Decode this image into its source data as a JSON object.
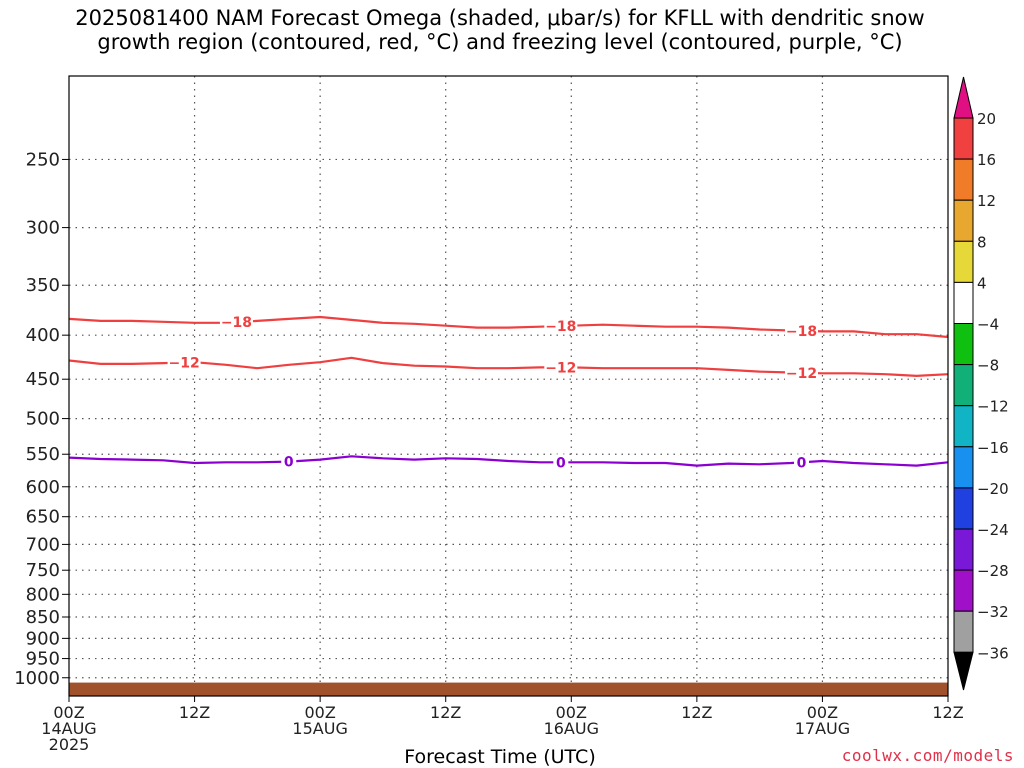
{
  "title": {
    "line1": "2025081400 NAM Forecast Omega (shaded, μbar/s) for KFLL with dendritic snow",
    "line2": "growth region (contoured, red, °C) and freezing level (contoured, purple, °C)"
  },
  "credit": "coolwx.com/models",
  "chart_data": {
    "type": "line",
    "title": "2025081400 NAM Forecast Omega (shaded, μbar/s) for KFLL with dendritic snow growth region (contoured, red, °C) and freezing level (contoured, purple, °C)",
    "xlabel": "Forecast Time (UTC)",
    "ylabel": "",
    "y_scale": "log",
    "y_inverted": true,
    "ylim": [
      1050,
      200
    ],
    "xlim": [
      0,
      84
    ],
    "grid": true,
    "x_ticks": [
      {
        "hour": 0,
        "lines": [
          "00Z",
          "14AUG",
          "2025"
        ]
      },
      {
        "hour": 12,
        "lines": [
          "12Z"
        ]
      },
      {
        "hour": 24,
        "lines": [
          "00Z",
          "15AUG"
        ]
      },
      {
        "hour": 36,
        "lines": [
          "12Z"
        ]
      },
      {
        "hour": 48,
        "lines": [
          "00Z",
          "16AUG"
        ]
      },
      {
        "hour": 60,
        "lines": [
          "12Z"
        ]
      },
      {
        "hour": 72,
        "lines": [
          "00Z",
          "17AUG"
        ]
      },
      {
        "hour": 84,
        "lines": [
          "12Z"
        ]
      }
    ],
    "y_ticks": [
      250,
      300,
      350,
      400,
      450,
      500,
      550,
      600,
      650,
      700,
      750,
      800,
      850,
      900,
      950,
      1000
    ],
    "x": [
      0,
      3,
      6,
      9,
      12,
      15,
      18,
      21,
      24,
      27,
      30,
      33,
      36,
      39,
      42,
      45,
      48,
      51,
      54,
      57,
      60,
      63,
      66,
      69,
      72,
      75,
      78,
      81,
      84
    ],
    "series": [
      {
        "name": "-18",
        "color": "#ee4040",
        "label_at_hours": [
          16,
          47,
          70
        ],
        "values": [
          383,
          385,
          385,
          386,
          387,
          387,
          385,
          383,
          381,
          384,
          387,
          388,
          390,
          392,
          392,
          391,
          390,
          389,
          390,
          391,
          391,
          392,
          394,
          395,
          396,
          396,
          399,
          399,
          402
        ]
      },
      {
        "name": "-12",
        "color": "#ee4040",
        "label_at_hours": [
          11,
          47,
          70
        ],
        "values": [
          428,
          432,
          432,
          431,
          430,
          433,
          437,
          433,
          430,
          425,
          431,
          434,
          435,
          437,
          437,
          436,
          436,
          437,
          437,
          437,
          437,
          439,
          441,
          442,
          443,
          443,
          444,
          446,
          444
        ]
      },
      {
        "name": "0",
        "color": "#8a00d0",
        "label_at_hours": [
          21,
          47,
          70
        ],
        "values": [
          555,
          557,
          558,
          559,
          563,
          562,
          562,
          561,
          558,
          553,
          556,
          558,
          556,
          557,
          560,
          562,
          562,
          562,
          563,
          563,
          567,
          564,
          565,
          563,
          560,
          563,
          565,
          567,
          562
        ]
      }
    ],
    "terrain": {
      "pressure_top": 1013,
      "color": "#a0522d"
    },
    "colorbar": {
      "unit": "μbar/s",
      "tick_labels": [
        "20",
        "16",
        "12",
        "8",
        "4",
        "−4",
        "−8",
        "−12",
        "−16",
        "−20",
        "−24",
        "−28",
        "−32",
        "−36"
      ],
      "colors": [
        "#e01082",
        "#f04040",
        "#f07b28",
        "#e8a830",
        "#e6d838",
        "#ffffff",
        "#10c010",
        "#10b078",
        "#10b4c4",
        "#1890f0",
        "#2040e0",
        "#7a18d8",
        "#a010c8",
        "#a0a0a0",
        "#000000"
      ]
    }
  }
}
